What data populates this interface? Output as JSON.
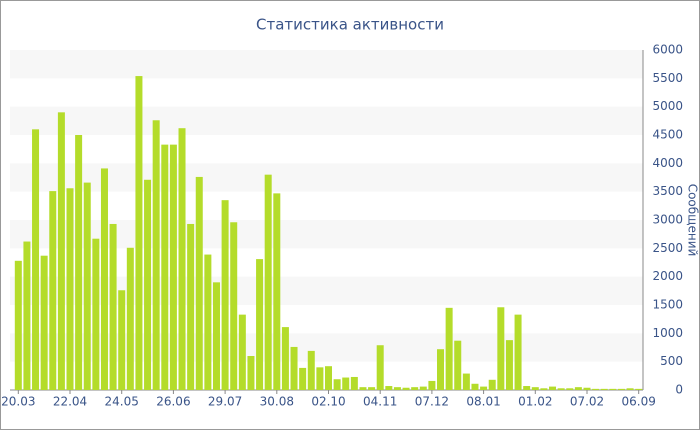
{
  "chart_data": {
    "type": "bar",
    "title": "Статистика активности",
    "y_label": "Сообщений",
    "categories": [
      "20.03",
      null,
      null,
      null,
      null,
      null,
      "22.04",
      null,
      null,
      null,
      null,
      null,
      "24.05",
      null,
      null,
      null,
      null,
      null,
      "26.06",
      null,
      null,
      null,
      null,
      null,
      "29.07",
      null,
      null,
      null,
      null,
      null,
      "30.08",
      null,
      null,
      null,
      null,
      null,
      "02.10",
      null,
      null,
      null,
      null,
      null,
      "04.11",
      null,
      null,
      null,
      null,
      null,
      "07.12",
      null,
      null,
      null,
      null,
      null,
      "08.01",
      null,
      null,
      null,
      null,
      null,
      "01.02",
      null,
      null,
      null,
      null,
      null,
      "07.02",
      null,
      null,
      null,
      null,
      null,
      "06.09"
    ],
    "values": [
      2280,
      2620,
      4600,
      2370,
      3510,
      4900,
      3560,
      4500,
      3660,
      2670,
      3910,
      2930,
      1760,
      2510,
      5540,
      3710,
      4760,
      4330,
      4330,
      4620,
      2930,
      3760,
      2390,
      1900,
      3350,
      2960,
      1330,
      600,
      2310,
      3800,
      3470,
      1110,
      760,
      390,
      690,
      400,
      420,
      190,
      220,
      230,
      50,
      50,
      790,
      70,
      50,
      40,
      50,
      60,
      160,
      720,
      1450,
      870,
      290,
      110,
      60,
      180,
      1460,
      880,
      1330,
      70,
      50,
      30,
      60,
      30,
      30,
      50,
      40,
      20,
      20,
      20,
      20,
      30,
      20
    ],
    "color": "#b4dc2a",
    "ylim": [
      0,
      6000
    ],
    "yticks": [
      0,
      500,
      1000,
      1500,
      2000,
      2500,
      3000,
      3500,
      4000,
      4500,
      5000,
      5500,
      6000
    ],
    "grid": true
  }
}
